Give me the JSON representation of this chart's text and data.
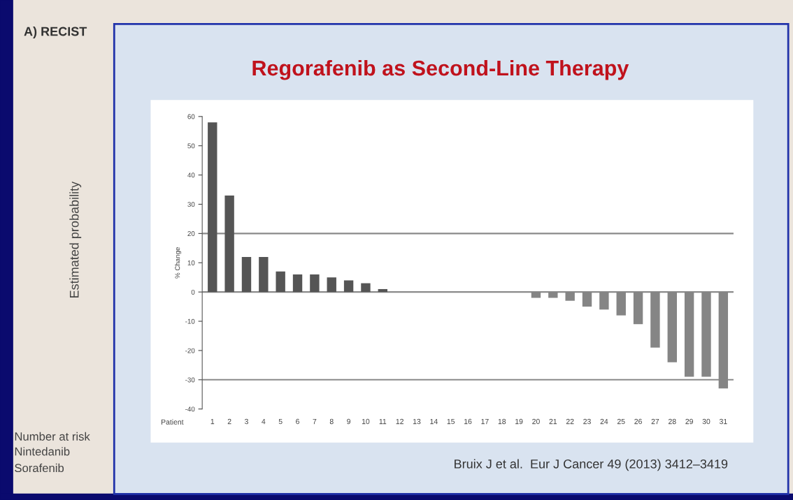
{
  "chart_data": {
    "type": "bar",
    "title": "Regorafenib as Second-Line Therapy",
    "xlabel": "Patient",
    "ylabel": "% Change",
    "categories": [
      "1",
      "2",
      "3",
      "4",
      "5",
      "6",
      "7",
      "8",
      "9",
      "10",
      "11",
      "12",
      "13",
      "14",
      "15",
      "16",
      "17",
      "18",
      "19",
      "20",
      "21",
      "22",
      "23",
      "24",
      "25",
      "26",
      "27",
      "28",
      "29",
      "30",
      "31"
    ],
    "values": [
      58,
      33,
      12,
      12,
      7,
      6,
      6,
      5,
      4,
      3,
      1,
      null,
      null,
      null,
      null,
      null,
      null,
      null,
      null,
      -2,
      -2,
      -3,
      -5,
      -6,
      -8,
      -11,
      -19,
      -24,
      -29,
      -29,
      -33
    ],
    "colors": [
      "#555555",
      "#555555",
      "#555555",
      "#555555",
      "#555555",
      "#555555",
      "#555555",
      "#555555",
      "#555555",
      "#555555",
      "#555555",
      null,
      null,
      null,
      null,
      null,
      null,
      null,
      null,
      "#858585",
      "#858585",
      "#858585",
      "#858585",
      "#858585",
      "#858585",
      "#858585",
      "#858585",
      "#858585",
      "#858585",
      "#858585",
      "#858585"
    ],
    "ylim": [
      -40,
      60
    ],
    "yticks": [
      -40,
      -30,
      -20,
      -10,
      0,
      10,
      20,
      30,
      40,
      50,
      60
    ],
    "ref_lines": [
      {
        "axis": "y",
        "value": 20,
        "color": "#8a8a8a"
      },
      {
        "axis": "y",
        "value": 0,
        "color": "#8a8a8a"
      },
      {
        "axis": "y",
        "value": -30,
        "color": "#8a8a8a"
      }
    ],
    "annotations": [
      "Bruix J et al.  Eur J Cancer 49 (2013) 3412–3419",
      "A) RECIST",
      "Estimated probability",
      "Number at risk",
      "Nintedanib",
      "Sorafenib"
    ]
  }
}
